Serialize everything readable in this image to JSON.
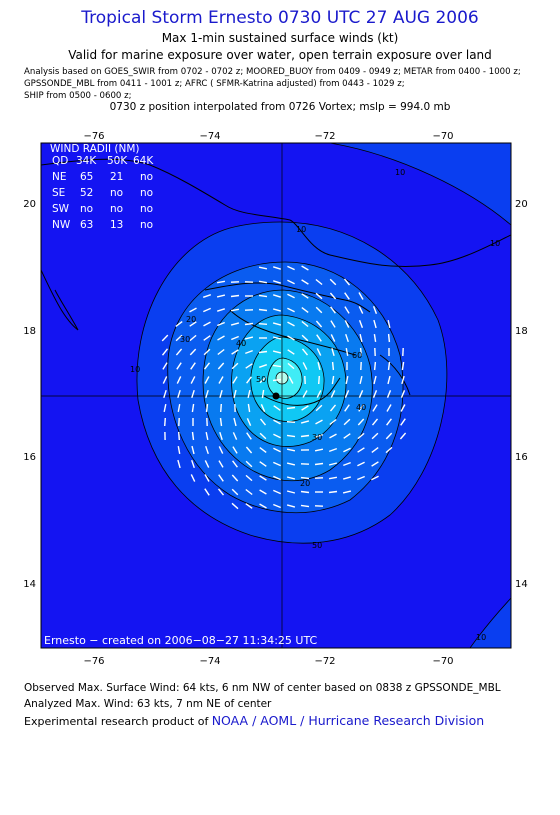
{
  "header": {
    "title": "Tropical Storm Ernesto 0730 UTC 27 AUG 2006",
    "subtitle": "Max 1-min sustained surface winds (kt)",
    "validity": "Valid for marine exposure over water, open terrain exposure over land",
    "analysis_lines": [
      "Analysis based on  GOES_SWIR from 0702 - 0702 z;  MOORED_BUOY from 0409 - 0949 z;  METAR from 0400 - 1000 z;",
      "GPSSONDE_MBL from 0411 - 1001 z;  AFRC ( SFMR-Katrina adjusted) from 0443 - 1029 z;",
      "SHIP from 0500 - 0600 z;"
    ],
    "position_note": "0730 z position interpolated from 0726 Vortex; mslp = 994.0 mb"
  },
  "map": {
    "lon_ticks": [
      "−76",
      "−74",
      "−72",
      "−70"
    ],
    "lat_ticks": [
      "20",
      "18",
      "16",
      "14"
    ],
    "contour_labels": [
      "10",
      "10",
      "20",
      "30",
      "40",
      "50",
      "60",
      "10",
      "20",
      "30",
      "40",
      "50",
      "10",
      "10"
    ],
    "wind_radii": {
      "title": "WIND RADII (NM)",
      "header": [
        "QD",
        "34K",
        "50K",
        "64K"
      ],
      "rows": [
        [
          "NE",
          "65",
          "21",
          "no"
        ],
        [
          "SE",
          "52",
          "no",
          "no"
        ],
        [
          "SW",
          "no",
          "no",
          "no"
        ],
        [
          "NW",
          "63",
          "13",
          "no"
        ]
      ]
    },
    "credit": "Ernesto − created on 2006−08−27 11:34:25 UTC",
    "colors": {
      "land_bg": "#1414f2",
      "lev10": "#0a3ef0",
      "lev20": "#0a5cf0",
      "lev30": "#087af0",
      "lev40": "#0aa2f2",
      "lev50": "#10c8f4",
      "lev60": "#40ecf6",
      "center": "#b8fff0"
    }
  },
  "footer": {
    "observed": "Observed Max. Surface Wind: 64 kts, 6 nm NW of center based on 0838 z GPSSONDE_MBL",
    "analyzed": "Analyzed Max. Wind: 63 kts, 7 nm NE of center",
    "product_label": "Experimental research product of",
    "product_link": "NOAA / AOML / Hurricane Research Division"
  }
}
